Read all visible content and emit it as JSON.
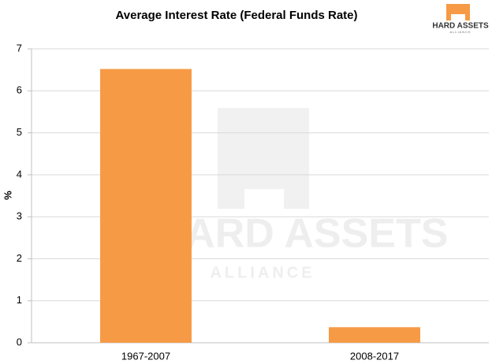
{
  "chart_data": {
    "type": "bar",
    "title": "Average Interest Rate (Federal Funds Rate)",
    "y_label": "%",
    "categories": [
      "1967-2007",
      "2008-2017"
    ],
    "values": [
      6.52,
      0.37
    ],
    "color": "#f79a45",
    "ylim": [
      0,
      7
    ],
    "yticks": [
      0,
      1,
      2,
      3,
      4,
      5,
      6,
      7
    ],
    "grid": true
  },
  "logo": {
    "name": "HARD ASSETS",
    "tagline": "ALLIANCE"
  }
}
